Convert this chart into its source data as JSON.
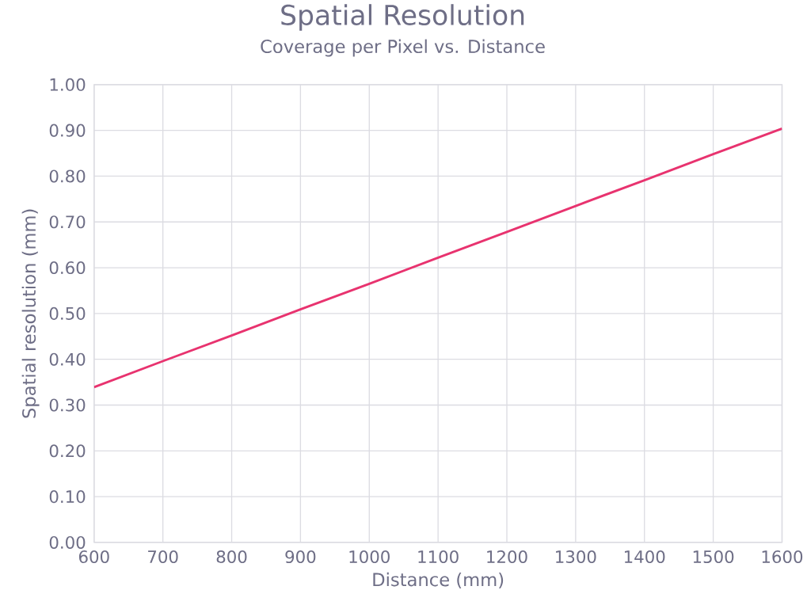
{
  "chart_data": {
    "type": "line",
    "title": "Spatial Resolution",
    "subtitle": "Coverage per Pixel vs. Distance",
    "xlabel": "Distance (mm)",
    "ylabel": "Spatial resolution (mm)",
    "x": [
      600,
      700,
      800,
      900,
      1000,
      1100,
      1200,
      1300,
      1400,
      1500,
      1600
    ],
    "series": [
      {
        "color": "#e8336f",
        "values": [
          0.339,
          0.396,
          0.452,
          0.509,
          0.565,
          0.622,
          0.678,
          0.735,
          0.791,
          0.848,
          0.904
        ]
      }
    ],
    "xlim": [
      600,
      1600
    ],
    "xticks": [
      600,
      700,
      800,
      900,
      1000,
      1100,
      1200,
      1300,
      1400,
      1500,
      1600
    ],
    "ylim": [
      0,
      1
    ],
    "yticks": [
      {
        "value": 0,
        "label": "0.00"
      },
      {
        "value": 0.1,
        "label": "0.10"
      },
      {
        "value": 0.2,
        "label": "0.20"
      },
      {
        "value": 0.3,
        "label": "0.30"
      },
      {
        "value": 0.4,
        "label": "0.40"
      },
      {
        "value": 0.5,
        "label": "0.50"
      },
      {
        "value": 0.6,
        "label": "0.60"
      },
      {
        "value": 0.7,
        "label": "0.70"
      },
      {
        "value": 0.8,
        "label": "0.80"
      },
      {
        "value": 0.9,
        "label": "0.90"
      },
      {
        "value": 1,
        "label": "1.00"
      }
    ],
    "grid": true,
    "marker": "none",
    "line_style": "solid"
  }
}
